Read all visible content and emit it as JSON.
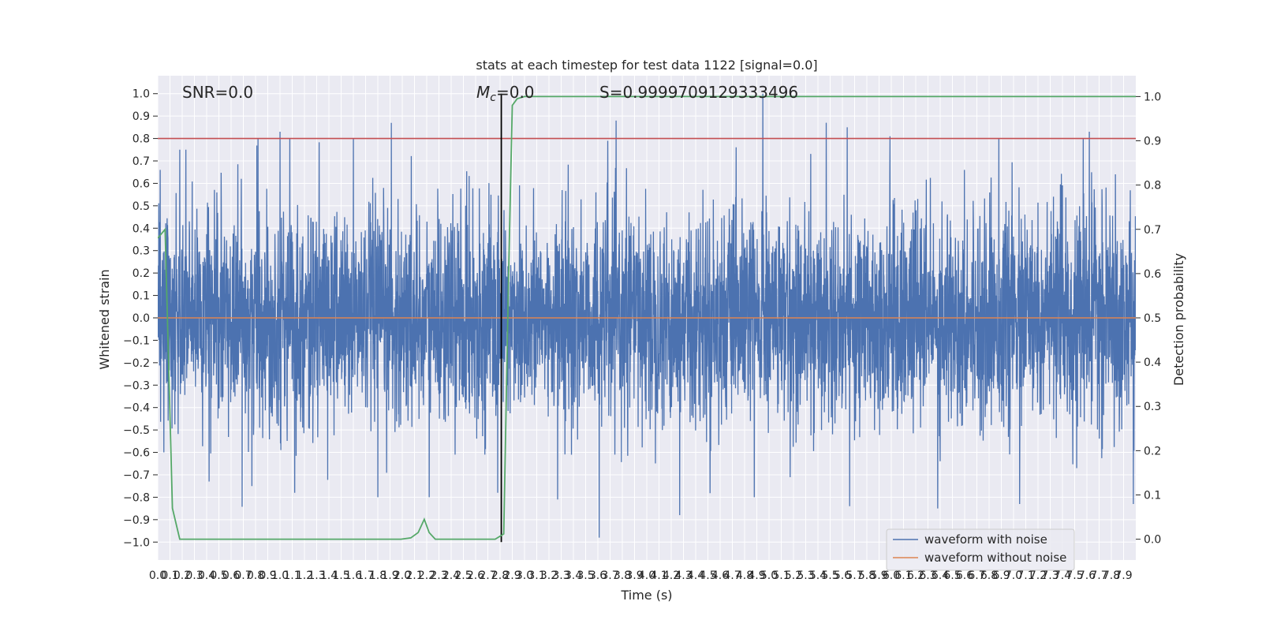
{
  "chart_data": {
    "type": "line",
    "title": "stats at each timestep for test data 1122 [signal=0.0]",
    "xlabel": "Time (s)",
    "ylabel": "Whitened strain",
    "y2label": "Detection probability",
    "xlim": [
      0.0,
      8.0
    ],
    "ylim": [
      -1.08,
      1.08
    ],
    "y2lim": [
      -0.047,
      1.047
    ],
    "xticks": [
      0.0,
      0.1,
      0.2,
      0.3,
      0.4,
      0.5,
      0.6,
      0.7,
      0.8,
      0.9,
      1.0,
      1.1,
      1.2,
      1.3,
      1.4,
      1.5,
      1.6,
      1.7,
      1.8,
      1.9,
      2.0,
      2.1,
      2.2,
      2.3,
      2.4,
      2.5,
      2.6,
      2.7,
      2.8,
      2.9,
      3.0,
      3.1,
      3.2,
      3.3,
      3.4,
      3.5,
      3.6,
      3.7,
      3.8,
      3.9,
      4.0,
      4.1,
      4.2,
      4.3,
      4.4,
      4.5,
      4.6,
      4.7,
      4.8,
      4.9,
      5.0,
      5.1,
      5.2,
      5.3,
      5.4,
      5.5,
      5.6,
      5.7,
      5.8,
      5.9,
      6.0,
      6.1,
      6.2,
      6.3,
      6.4,
      6.5,
      6.6,
      6.7,
      6.8,
      6.9,
      7.0,
      7.1,
      7.2,
      7.3,
      7.4,
      7.5,
      7.6,
      7.7,
      7.8,
      7.9
    ],
    "yticks": [
      1.0,
      0.9,
      0.8,
      0.7,
      0.6,
      0.5,
      0.4,
      0.3,
      0.2,
      0.1,
      0.0,
      -0.1,
      -0.2,
      -0.3,
      -0.4,
      -0.5,
      -0.6,
      -0.7,
      -0.8,
      -0.9,
      -1.0
    ],
    "y2ticks": [
      1.0,
      0.9,
      0.8,
      0.7,
      0.6,
      0.5,
      0.4,
      0.3,
      0.2,
      0.1,
      0.0
    ],
    "grid": true,
    "legend_position": "bottom-right",
    "annotations": {
      "snr": "SNR=0.0",
      "mc_symbol": "M",
      "mc_subscript": "c",
      "mc_value": "=0.0",
      "s_text": "S=0.9999709129333496"
    },
    "threshold": {
      "value": 0.8,
      "axis": "left",
      "color": "#c44e52"
    },
    "vertical_marker": {
      "x": 2.81,
      "color": "#000000"
    },
    "series": [
      {
        "name": "waveform with noise",
        "color": "#4c72b0",
        "axis": "left",
        "noise_std": 0.23,
        "spikes": [
          {
            "x": 0.02,
            "y": 0.66
          },
          {
            "x": 0.05,
            "y": -0.6
          },
          {
            "x": 0.18,
            "y": 0.75
          },
          {
            "x": 0.23,
            "y": 0.75
          },
          {
            "x": 0.42,
            "y": -0.73
          },
          {
            "x": 0.82,
            "y": 0.8
          },
          {
            "x": 0.77,
            "y": -0.75
          },
          {
            "x": 1.0,
            "y": 0.83
          },
          {
            "x": 1.08,
            "y": 0.8
          },
          {
            "x": 1.12,
            "y": -0.78
          },
          {
            "x": 1.6,
            "y": 0.8
          },
          {
            "x": 1.8,
            "y": -0.8
          },
          {
            "x": 1.91,
            "y": 0.87
          },
          {
            "x": 2.22,
            "y": -0.8
          },
          {
            "x": 2.78,
            "y": -0.78
          },
          {
            "x": 3.27,
            "y": -0.81
          },
          {
            "x": 3.61,
            "y": -0.98
          },
          {
            "x": 3.68,
            "y": 0.79
          },
          {
            "x": 4.27,
            "y": -0.88
          },
          {
            "x": 4.88,
            "y": -0.8
          },
          {
            "x": 4.95,
            "y": 1.0
          },
          {
            "x": 5.64,
            "y": 0.85
          },
          {
            "x": 5.66,
            "y": -0.84
          },
          {
            "x": 5.99,
            "y": 0.81
          },
          {
            "x": 6.38,
            "y": -0.85
          },
          {
            "x": 6.88,
            "y": 0.8
          },
          {
            "x": 7.05,
            "y": -0.83
          },
          {
            "x": 7.57,
            "y": 0.8
          },
          {
            "x": 7.62,
            "y": 0.83
          },
          {
            "x": 7.98,
            "y": -0.83
          }
        ]
      },
      {
        "name": "waveform without noise",
        "color": "#dd8452",
        "axis": "left",
        "x": [
          0.0,
          8.0
        ],
        "y": [
          0.0,
          0.0
        ]
      },
      {
        "color": "#55a868",
        "axis": "right",
        "x": [
          0.0,
          0.06,
          0.12,
          0.18,
          0.5,
          1.0,
          1.5,
          1.8,
          1.99,
          2.07,
          2.13,
          2.18,
          2.22,
          2.27,
          2.34,
          2.5,
          2.76,
          2.83,
          2.87,
          2.9,
          2.94,
          3.0,
          8.0
        ],
        "y": [
          0.68,
          0.7,
          0.07,
          0.0,
          0.0,
          0.0,
          0.0,
          0.0,
          0.0,
          0.003,
          0.015,
          0.045,
          0.015,
          0.0,
          0.0,
          0.0,
          0.0,
          0.012,
          0.6,
          0.98,
          0.995,
          1.0,
          1.0
        ]
      }
    ]
  }
}
